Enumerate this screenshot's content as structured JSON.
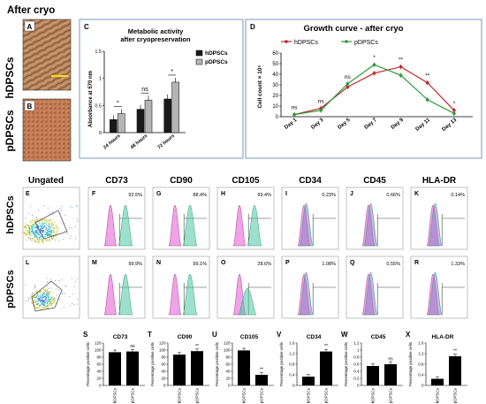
{
  "header": {
    "after_cryo": "After cryo",
    "row_hdpsc": "hDPSCs",
    "row_pdpsc": "pDPSCs",
    "ungated": "Ungated"
  },
  "panel_letters": {
    "A": "A",
    "B": "B",
    "C": "C",
    "D": "D",
    "E": "E",
    "F": "F",
    "G": "G",
    "H": "H",
    "I": "I",
    "J": "J",
    "K": "K",
    "L": "L",
    "M": "M",
    "N": "N",
    "O": "O",
    "P": "P",
    "Q": "Q",
    "R": "R",
    "S": "S",
    "T": "T",
    "U": "U",
    "V": "V",
    "W": "W",
    "X": "X"
  },
  "markers": [
    "CD73",
    "CD90",
    "CD105",
    "CD34",
    "CD45",
    "HLA-DR"
  ],
  "flow_percent": {
    "hdpsc": [
      "92.5%",
      "88.4%",
      "99.4%",
      "0.23%",
      "0.66%",
      "0.14%"
    ],
    "pdpsc": [
      "99.9%",
      "99.1%",
      "28.6%",
      "1.08%",
      "0.55%",
      "1.33%"
    ]
  },
  "colors": {
    "hdpsc_histogram": "#e05ad1",
    "pdpsc_histogram": "#4ec6a2",
    "neg_histogram": "#8e7fc4",
    "h_line": "#c0272d",
    "p_line": "#2e9b3b",
    "panel_border": "#5a7fb0"
  },
  "chart_data": [
    {
      "type": "bar",
      "panel": "C",
      "title": "Metabolic activity after cryopreservation",
      "ylabel": "Absorbance at 570 nm",
      "ylim": [
        0,
        1.5
      ],
      "yticks": [
        "0",
        "0.5",
        "1",
        "1.5"
      ],
      "categories": [
        "24 hours",
        "48 hours",
        "72 hours"
      ],
      "series": [
        {
          "name": "hDPSCs",
          "values": [
            0.24,
            0.43,
            0.62
          ]
        },
        {
          "name": "pDPSCs",
          "values": [
            0.35,
            0.6,
            0.93
          ]
        }
      ],
      "significance": [
        "*",
        "ns",
        "*"
      ]
    },
    {
      "type": "line",
      "panel": "D",
      "title": "Growth curve - after cryo",
      "ylabel": "Cell count × 10⁵",
      "ylim": [
        0,
        60
      ],
      "yticks": [
        "0",
        "10",
        "20",
        "30",
        "40",
        "50",
        "60"
      ],
      "categories": [
        "Day 1",
        "Day 3",
        "Day 5",
        "Day 7",
        "Day 9",
        "Day 11",
        "Day 13"
      ],
      "series": [
        {
          "name": "hDPSCs",
          "values": [
            2,
            8,
            28,
            41,
            47,
            32,
            6
          ]
        },
        {
          "name": "pDPSCs",
          "values": [
            2,
            6,
            31,
            49,
            39,
            16,
            3
          ]
        }
      ],
      "significance": [
        "ns",
        "ns",
        "ns",
        "*",
        "**",
        "**",
        "*"
      ]
    },
    {
      "type": "bar",
      "panel": "S",
      "title": "CD73",
      "ylabel": "Percentage positive cells",
      "ylim": [
        0,
        120
      ],
      "yticks": [
        "0",
        "20",
        "40",
        "60",
        "80",
        "100",
        "120"
      ],
      "categories": [
        "hDPSCs",
        "pDPSCs"
      ],
      "values": [
        94,
        96
      ],
      "significance": "ns"
    },
    {
      "type": "bar",
      "panel": "T",
      "title": "CD90",
      "ylabel": "Percentage positive cells",
      "ylim": [
        0,
        120
      ],
      "yticks": [
        "0",
        "20",
        "40",
        "60",
        "80",
        "100",
        "120"
      ],
      "categories": [
        "hDPSCs",
        "pDPSCs"
      ],
      "values": [
        87,
        97
      ],
      "significance": "**"
    },
    {
      "type": "bar",
      "panel": "U",
      "title": "CD105",
      "ylabel": "Percentage positive cells",
      "ylim": [
        0,
        120
      ],
      "yticks": [
        "0",
        "20",
        "40",
        "60",
        "80",
        "100",
        "120"
      ],
      "categories": [
        "hDPSCs",
        "pDPSCs"
      ],
      "values": [
        99,
        30
      ],
      "significance": "**"
    },
    {
      "type": "bar",
      "panel": "V",
      "title": "CD34",
      "ylabel": "Percentage positive cells",
      "ylim": [
        0,
        1.6
      ],
      "yticks": [
        "0",
        "0.4",
        "0.8",
        "1.2",
        "1.6"
      ],
      "categories": [
        "hDPSCs",
        "pDPSCs"
      ],
      "values": [
        0.33,
        1.28
      ],
      "significance": "**"
    },
    {
      "type": "bar",
      "panel": "W",
      "title": "CD45",
      "ylabel": "Percentage positive cells",
      "ylim": [
        0,
        1.2
      ],
      "yticks": [
        "0",
        "0.2",
        "0.4",
        "0.6",
        "0.8",
        "1",
        "1.2"
      ],
      "categories": [
        "hDPSCs",
        "pDPSCs"
      ],
      "values": [
        0.55,
        0.6
      ],
      "significance": "ns"
    },
    {
      "type": "bar",
      "panel": "X",
      "title": "HLA-DR",
      "ylabel": "Percentage positive cells",
      "ylim": [
        0,
        1.6
      ],
      "yticks": [
        "0",
        "0.4",
        "0.8",
        "1.2",
        "1.6"
      ],
      "categories": [
        "hDPSCs",
        "pDPSCs"
      ],
      "values": [
        0.25,
        1.1
      ],
      "significance": "**"
    }
  ]
}
